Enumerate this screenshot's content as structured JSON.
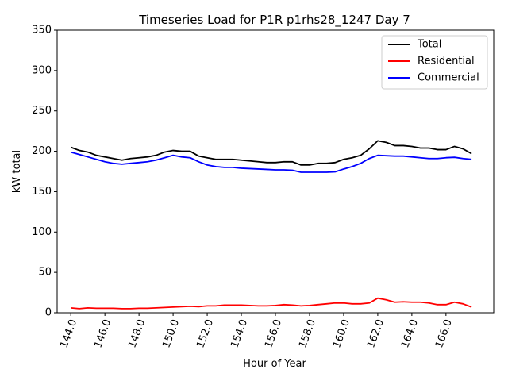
{
  "chart_data": {
    "type": "line",
    "title": "Timeseries Load for P1R p1rhs28_1247  Day 7",
    "xlabel": "Hour of Year",
    "ylabel": "kW total",
    "xlim": [
      143.2,
      168.8
    ],
    "ylim": [
      0,
      350
    ],
    "xticks": [
      144,
      146,
      148,
      150,
      152,
      154,
      156,
      158,
      160,
      162,
      164,
      166
    ],
    "xtick_labels": [
      "144.0",
      "146.0",
      "148.0",
      "150.0",
      "152.0",
      "154.0",
      "156.0",
      "158.0",
      "160.0",
      "162.0",
      "164.0",
      "166.0"
    ],
    "yticks": [
      0,
      50,
      100,
      150,
      200,
      250,
      300,
      350
    ],
    "ytick_labels": [
      "0",
      "50",
      "100",
      "150",
      "200",
      "250",
      "300",
      "350"
    ],
    "grid": false,
    "legend_position": "top-right",
    "x": [
      144.0,
      144.5,
      145.0,
      145.5,
      146.0,
      146.5,
      147.0,
      147.5,
      148.0,
      148.5,
      149.0,
      149.5,
      150.0,
      150.5,
      151.0,
      151.5,
      152.0,
      152.5,
      153.0,
      153.5,
      154.0,
      154.5,
      155.0,
      155.5,
      156.0,
      156.5,
      157.0,
      157.5,
      158.0,
      158.5,
      159.0,
      159.5,
      160.0,
      160.5,
      161.0,
      161.5,
      162.0,
      162.5,
      163.0,
      163.5,
      164.0,
      164.5,
      165.0,
      165.5,
      166.0,
      166.5,
      167.0,
      167.5
    ],
    "series": [
      {
        "name": "Total",
        "color": "#000000",
        "values": [
          205,
          201,
          199,
          195,
          193,
          191,
          189,
          191,
          192,
          193,
          195,
          199,
          201,
          200,
          200,
          194,
          192,
          190,
          190,
          190,
          189,
          188,
          187,
          186,
          186,
          187,
          187,
          183,
          183,
          185,
          185,
          186,
          190,
          192,
          195,
          203,
          213,
          211,
          207,
          207,
          206,
          204,
          204,
          202,
          202,
          206,
          203,
          197
        ]
      },
      {
        "name": "Residential",
        "color": "#ff0000",
        "values": [
          6,
          5,
          6,
          5.5,
          5.5,
          5.5,
          5,
          5,
          5.5,
          5.5,
          6,
          6.5,
          7,
          7.5,
          8,
          7.5,
          8.5,
          8.5,
          9.5,
          9.5,
          9.5,
          9,
          8.5,
          8.5,
          9,
          10,
          9.5,
          8.5,
          9,
          10,
          11,
          12,
          12,
          11,
          11,
          12,
          18,
          16,
          13,
          13.5,
          13,
          13,
          12,
          10,
          10,
          13,
          11,
          7
        ]
      },
      {
        "name": "Commercial",
        "color": "#0000ff",
        "values": [
          199,
          196,
          193,
          190,
          187,
          185,
          184,
          185,
          186,
          187,
          189,
          192,
          195,
          193,
          192,
          187,
          183,
          181,
          180,
          180,
          179,
          178.5,
          178,
          177.5,
          177,
          177,
          176.5,
          174,
          174,
          174,
          174,
          174.5,
          178,
          181,
          185,
          191,
          195,
          194.5,
          194,
          194,
          193,
          192,
          191,
          191,
          192,
          192.5,
          191,
          190
        ]
      }
    ]
  }
}
